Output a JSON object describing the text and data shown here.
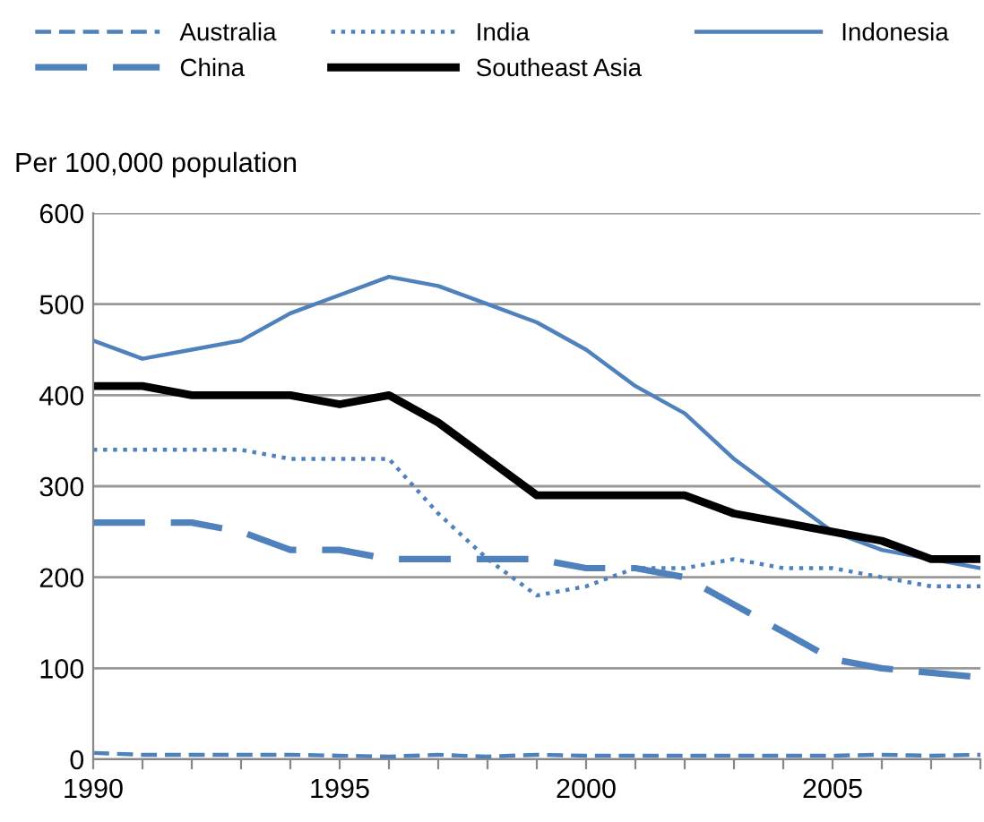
{
  "chart_data": {
    "type": "line",
    "ylabel": "Per 100,000 population",
    "x": [
      1990,
      1991,
      1992,
      1993,
      1994,
      1995,
      1996,
      1997,
      1998,
      1999,
      2000,
      2001,
      2002,
      2003,
      2004,
      2005,
      2006,
      2007,
      2008
    ],
    "series": [
      {
        "name": "Australia",
        "color": "#4f81bd",
        "line_style": "dashed",
        "values": [
          7,
          5,
          5,
          5,
          5,
          4,
          3,
          5,
          3,
          5,
          4,
          4,
          4,
          4,
          4,
          4,
          5,
          4,
          5
        ]
      },
      {
        "name": "India",
        "color": "#4f81bd",
        "line_style": "dotted",
        "values": [
          340,
          340,
          340,
          340,
          330,
          330,
          330,
          270,
          220,
          180,
          190,
          210,
          210,
          220,
          210,
          210,
          200,
          190,
          190
        ]
      },
      {
        "name": "Indonesia",
        "color": "#4f81bd",
        "line_style": "solid",
        "values": [
          460,
          440,
          450,
          460,
          490,
          510,
          530,
          520,
          500,
          480,
          450,
          410,
          380,
          330,
          290,
          250,
          230,
          220,
          210
        ]
      },
      {
        "name": "China",
        "color": "#4f81bd",
        "line_style": "longdash",
        "values": [
          260,
          260,
          260,
          250,
          230,
          230,
          220,
          220,
          220,
          220,
          210,
          210,
          200,
          170,
          140,
          110,
          100,
          95,
          90
        ]
      },
      {
        "name": "Southeast Asia",
        "color": "#000000",
        "line_style": "solid",
        "values": [
          410,
          410,
          400,
          400,
          400,
          390,
          400,
          370,
          330,
          290,
          290,
          290,
          290,
          270,
          260,
          250,
          240,
          220,
          220
        ]
      }
    ],
    "xlim": [
      1990,
      2008
    ],
    "xticks": [
      1990,
      {
        "value": 1991,
        "label": null
      },
      {
        "value": 1992,
        "label": null
      },
      {
        "value": 1993,
        "label": null
      },
      {
        "value": 1994,
        "label": null
      },
      1995,
      {
        "value": 1996,
        "label": null
      },
      {
        "value": 1997,
        "label": null
      },
      {
        "value": 1998,
        "label": null
      },
      {
        "value": 1999,
        "label": null
      },
      2000,
      {
        "value": 2001,
        "label": null
      },
      {
        "value": 2002,
        "label": null
      },
      {
        "value": 2003,
        "label": null
      },
      {
        "value": 2004,
        "label": null
      },
      2005,
      {
        "value": 2006,
        "label": null
      },
      {
        "value": 2007,
        "label": null
      },
      {
        "value": 2008,
        "label": null
      }
    ],
    "ylim": [
      0,
      600
    ],
    "yticks": [
      0,
      100,
      200,
      300,
      400,
      500,
      600
    ],
    "grid": "y",
    "legend": "top"
  }
}
